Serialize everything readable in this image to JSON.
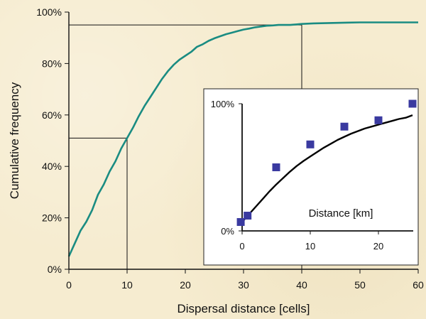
{
  "chart_data": [
    {
      "type": "line",
      "xlabel": "Dispersal distance [cells]",
      "ylabel": "Cumulative frequency",
      "xlim": [
        0,
        60
      ],
      "ylim": [
        0,
        100
      ],
      "x_ticks": [
        "0",
        "10",
        "20",
        "30",
        "40",
        "50",
        "60"
      ],
      "y_ticks": [
        "0%",
        "20%",
        "40%",
        "60%",
        "80%",
        "100%"
      ],
      "series": [
        {
          "color": "#1a8c82",
          "x": [
            0,
            1,
            2,
            3,
            4,
            5,
            6,
            7,
            8,
            9,
            10,
            11,
            12,
            13,
            14,
            15,
            16,
            17,
            18,
            19,
            20,
            21,
            22,
            23,
            24,
            25,
            26,
            27,
            28,
            29,
            30,
            31,
            32,
            33,
            34,
            35,
            36,
            37,
            38,
            39,
            40,
            42,
            44,
            46,
            48,
            50,
            52,
            54,
            56,
            58,
            60
          ],
          "y": [
            5,
            10,
            15,
            18.5,
            23,
            29,
            33,
            38,
            42,
            47,
            51,
            55,
            59.5,
            63.5,
            67,
            70.5,
            74,
            77,
            79.5,
            81.5,
            83,
            84.5,
            86.5,
            87.5,
            88.8,
            89.8,
            90.6,
            91.4,
            92,
            92.6,
            93.2,
            93.6,
            94.1,
            94.4,
            94.7,
            94.8,
            95,
            95,
            95,
            95.2,
            95.4,
            95.6,
            95.7,
            95.8,
            95.9,
            96,
            96,
            96,
            96,
            96,
            96
          ]
        }
      ],
      "guides": [
        {
          "x": 10,
          "y": 51
        },
        {
          "x": 40,
          "y": 95
        }
      ]
    },
    {
      "type": "scatter",
      "xlabel": "Distance [km]",
      "xlim": [
        0,
        25
      ],
      "ylim": [
        0,
        100
      ],
      "x_ticks": [
        "0",
        "10",
        "20"
      ],
      "y_ticks": [
        "0%",
        "100%"
      ],
      "points": {
        "color": "#3a3aa0",
        "x": [
          -0.2,
          0.8,
          5,
          10,
          15,
          20,
          25
        ],
        "y": [
          7,
          12,
          50,
          68,
          82,
          87,
          100
        ]
      },
      "fit": {
        "color": "#000000",
        "x": [
          0,
          1,
          2,
          3,
          4,
          5,
          6,
          7,
          8,
          9,
          10,
          11,
          12,
          13,
          14,
          15,
          16,
          17,
          18,
          19,
          20,
          21,
          22,
          23,
          24,
          25
        ],
        "y": [
          7,
          13,
          19,
          25,
          31,
          36.5,
          41.5,
          46.5,
          51,
          55,
          58.5,
          62,
          65.5,
          68.5,
          71.5,
          74,
          76.5,
          78.5,
          80.5,
          82,
          83.5,
          85,
          86.5,
          88,
          89,
          91
        ]
      }
    }
  ]
}
